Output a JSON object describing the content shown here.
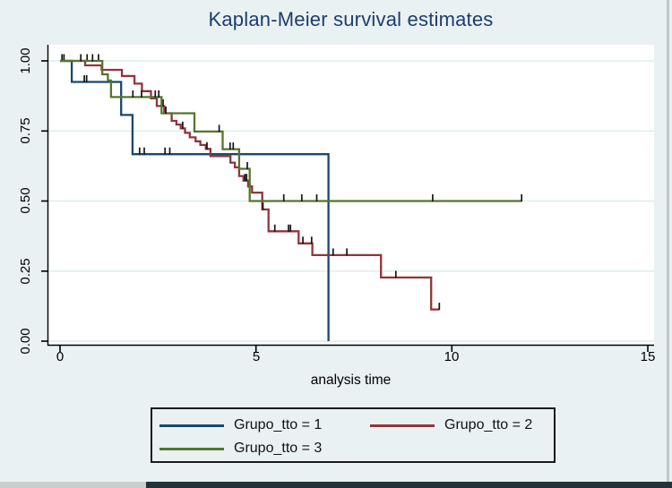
{
  "title": "Kaplan-Meier survival estimates",
  "x_axis": {
    "label": "analysis time",
    "tick_labels": [
      "0",
      "5",
      "10",
      "15"
    ]
  },
  "y_axis": {
    "tick_labels": [
      "1.00",
      "0.75",
      "0.50",
      "0.25",
      "0.00"
    ]
  },
  "colors": {
    "background": "#e9f1f2",
    "plot_background": "#ffffff",
    "gridline": "#dfebeb",
    "axis": "#000000",
    "title_text": "#1d3c6e",
    "censor_tick": "#151515",
    "group1": "#1a476f",
    "group2": "#90353b",
    "group3": "#55752f"
  },
  "legend": {
    "items": [
      {
        "label": "Grupo_tto = 1",
        "color": "#1a476f"
      },
      {
        "label": "Grupo_tto = 2",
        "color": "#90353b"
      },
      {
        "label": "Grupo_tto = 3",
        "color": "#55752f"
      }
    ]
  },
  "chart_data": {
    "type": "line",
    "subtype": "kaplan-meier-step",
    "title": "Kaplan-Meier survival estimates",
    "xlabel": "analysis time",
    "ylabel": "",
    "xlim": [
      0,
      15
    ],
    "ylim": [
      0,
      1
    ],
    "x_ticks": [
      0,
      5,
      10,
      15
    ],
    "x_tick_labels": [
      "0",
      "5",
      "10",
      "15"
    ],
    "y_ticks": [
      1.0,
      0.75,
      0.5,
      0.25,
      0.0
    ],
    "y_tick_labels": [
      "1.00",
      "0.75",
      "0.50",
      "0.25",
      "0.00"
    ],
    "grid": "horizontal",
    "legend_position": "below",
    "series": [
      {
        "id": "grupo1",
        "name": "Grupo_tto = 1",
        "color": "#1a476f",
        "steps": [
          [
            0,
            1.0
          ],
          [
            0.3,
            0.925
          ],
          [
            1.56,
            0.807
          ],
          [
            1.85,
            0.667
          ],
          [
            6.85,
            0.0
          ]
        ],
        "end_time": 6.85,
        "censored": [
          [
            0.62,
            0.925
          ],
          [
            0.68,
            0.925
          ],
          [
            2.03,
            0.667
          ],
          [
            2.15,
            0.667
          ],
          [
            2.68,
            0.667
          ],
          [
            2.8,
            0.667
          ]
        ]
      },
      {
        "id": "grupo2",
        "name": "Grupo_tto = 2",
        "color": "#90353b",
        "steps": [
          [
            0,
            1.0
          ],
          [
            0.64,
            0.984
          ],
          [
            1.06,
            0.968
          ],
          [
            1.58,
            0.946
          ],
          [
            1.9,
            0.919
          ],
          [
            2.09,
            0.892
          ],
          [
            2.32,
            0.866
          ],
          [
            2.47,
            0.839
          ],
          [
            2.66,
            0.813
          ],
          [
            2.85,
            0.786
          ],
          [
            2.97,
            0.773
          ],
          [
            3.08,
            0.759
          ],
          [
            3.19,
            0.743
          ],
          [
            3.31,
            0.727
          ],
          [
            3.46,
            0.713
          ],
          [
            3.58,
            0.7
          ],
          [
            3.72,
            0.686
          ],
          [
            3.84,
            0.66
          ],
          [
            4.35,
            0.637
          ],
          [
            4.46,
            0.62
          ],
          [
            4.57,
            0.589
          ],
          [
            4.68,
            0.573
          ],
          [
            4.8,
            0.552
          ],
          [
            4.9,
            0.53
          ],
          [
            5.16,
            0.47
          ],
          [
            5.32,
            0.392
          ],
          [
            6.09,
            0.349
          ],
          [
            6.44,
            0.307
          ],
          [
            8.19,
            0.227
          ],
          [
            9.47,
            0.113
          ]
        ],
        "end_time": 9.68,
        "censored": [
          [
            0.05,
            1.0
          ],
          [
            0.1,
            1.0
          ],
          [
            0.69,
            1.0
          ],
          [
            0.98,
            1.0
          ],
          [
            2.63,
            0.839
          ],
          [
            3.13,
            0.759
          ],
          [
            3.75,
            0.686
          ],
          [
            4.72,
            0.573
          ],
          [
            4.76,
            0.573
          ],
          [
            5.18,
            0.47
          ],
          [
            5.48,
            0.392
          ],
          [
            5.83,
            0.392
          ],
          [
            5.88,
            0.392
          ],
          [
            6.2,
            0.349
          ],
          [
            6.42,
            0.349
          ],
          [
            6.97,
            0.307
          ],
          [
            7.32,
            0.307
          ],
          [
            8.57,
            0.227
          ],
          [
            9.68,
            0.113
          ]
        ]
      },
      {
        "id": "grupo3",
        "name": "Grupo_tto = 3",
        "color": "#55752f",
        "steps": [
          [
            0,
            1.0
          ],
          [
            1.08,
            0.952
          ],
          [
            1.22,
            0.93
          ],
          [
            1.3,
            0.871
          ],
          [
            2.59,
            0.813
          ],
          [
            3.43,
            0.748
          ],
          [
            4.15,
            0.685
          ],
          [
            4.57,
            0.615
          ],
          [
            4.84,
            0.5
          ]
        ],
        "end_time": 11.78,
        "censored": [
          [
            0.53,
            1.0
          ],
          [
            0.83,
            1.0
          ],
          [
            1.86,
            0.871
          ],
          [
            2.08,
            0.871
          ],
          [
            2.43,
            0.871
          ],
          [
            2.52,
            0.871
          ],
          [
            2.7,
            0.813
          ],
          [
            4.06,
            0.748
          ],
          [
            4.34,
            0.685
          ],
          [
            4.42,
            0.685
          ],
          [
            4.78,
            0.615
          ],
          [
            5.71,
            0.5
          ],
          [
            6.17,
            0.5
          ],
          [
            6.55,
            0.5
          ],
          [
            9.51,
            0.5
          ],
          [
            11.78,
            0.5
          ]
        ]
      }
    ]
  }
}
